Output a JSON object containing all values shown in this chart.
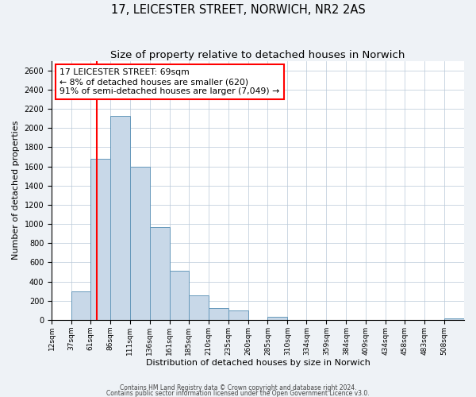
{
  "title": "17, LEICESTER STREET, NORWICH, NR2 2AS",
  "subtitle": "Size of property relative to detached houses in Norwich",
  "xlabel": "Distribution of detached houses by size in Norwich",
  "ylabel": "Number of detached properties",
  "bin_labels": [
    "12sqm",
    "37sqm",
    "61sqm",
    "86sqm",
    "111sqm",
    "136sqm",
    "161sqm",
    "185sqm",
    "210sqm",
    "235sqm",
    "260sqm",
    "285sqm",
    "310sqm",
    "334sqm",
    "359sqm",
    "384sqm",
    "409sqm",
    "434sqm",
    "458sqm",
    "483sqm",
    "508sqm"
  ],
  "bin_edges": [
    12,
    37,
    61,
    86,
    111,
    136,
    161,
    185,
    210,
    235,
    260,
    285,
    310,
    334,
    359,
    384,
    409,
    434,
    458,
    483,
    508
  ],
  "bar_heights": [
    0,
    300,
    1680,
    2130,
    1600,
    970,
    510,
    255,
    120,
    100,
    0,
    35,
    0,
    0,
    0,
    0,
    0,
    0,
    0,
    0,
    20
  ],
  "bar_color": "#c8d8e8",
  "bar_edge_color": "#6699bb",
  "property_line_x": 69,
  "property_line_color": "red",
  "annotation_title": "17 LEICESTER STREET: 69sqm",
  "annotation_line1": "← 8% of detached houses are smaller (620)",
  "annotation_line2": "91% of semi-detached houses are larger (7,049) →",
  "annotation_box_color": "white",
  "annotation_box_edge_color": "red",
  "ylim": [
    0,
    2700
  ],
  "yticks": [
    0,
    200,
    400,
    600,
    800,
    1000,
    1200,
    1400,
    1600,
    1800,
    2000,
    2200,
    2400,
    2600
  ],
  "footer1": "Contains HM Land Registry data © Crown copyright and database right 2024.",
  "footer2": "Contains public sector information licensed under the Open Government Licence v3.0.",
  "background_color": "#eef2f6",
  "plot_background_color": "white",
  "title_fontsize": 10.5,
  "subtitle_fontsize": 9.5
}
